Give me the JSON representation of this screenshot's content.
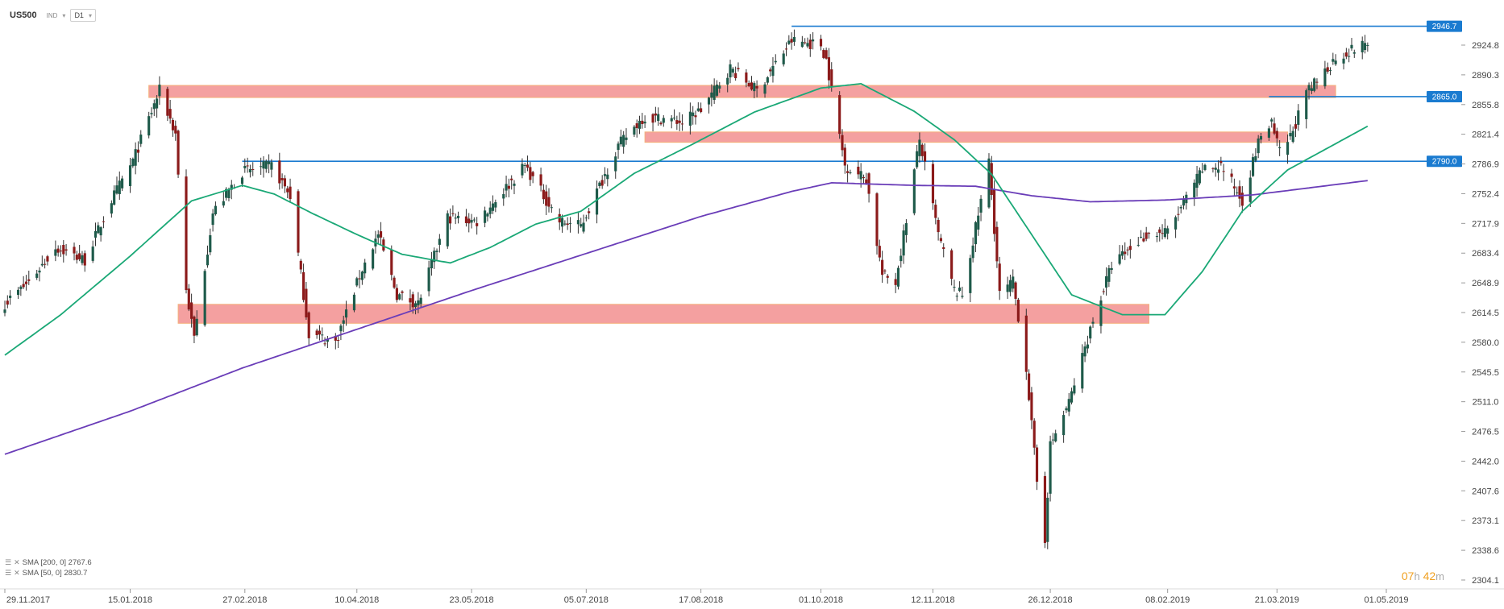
{
  "header": {
    "symbol": "US500",
    "market": "IND",
    "timeframe": "D1"
  },
  "legend": [
    {
      "label": "SMA [200, 0] 2767.6",
      "color": "#6a3db8"
    },
    {
      "label": "SMA [50, 0] 2830.7",
      "color": "#1aa876"
    }
  ],
  "timer": {
    "hours": "07",
    "h": "h",
    "minutes": "42",
    "m": "m"
  },
  "colors": {
    "bull": "#1e5a4a",
    "bear": "#8b1a1a",
    "sma200": "#6a3db8",
    "sma50": "#1aa876",
    "level": "#1a7bd0",
    "zone": "#f08080"
  },
  "chart_data": {
    "type": "candlestick",
    "x_ticks": [
      "29.11.2017",
      "15.01.2018",
      "27.02.2018",
      "10.04.2018",
      "23.05.2018",
      "05.07.2018",
      "17.08.2018",
      "01.10.2018",
      "12.11.2018",
      "26.12.2018",
      "08.02.2019",
      "21.03.2019",
      "01.05.2019"
    ],
    "y_ticks": [
      "2924.8",
      "2890.3",
      "2855.8",
      "2821.4",
      "2786.9",
      "2752.4",
      "2717.9",
      "2683.4",
      "2648.9",
      "2614.5",
      "2580.0",
      "2545.5",
      "2511.0",
      "2476.5",
      "2442.0",
      "2407.6",
      "2373.1",
      "2338.6",
      "2304.1"
    ],
    "ylim": [
      2304.1,
      2964.0
    ],
    "levels": [
      {
        "value": 2946.7,
        "label": "2946.7",
        "start": "2018-09-20"
      },
      {
        "value": 2865.0,
        "label": "2865.0",
        "start": "2019-03-18"
      },
      {
        "value": 2790.0,
        "label": "2790.0",
        "start": "2018-02-26"
      }
    ],
    "zones": [
      {
        "from": 2864,
        "to": 2878,
        "start": "2018-01-22",
        "end": "2019-04-12"
      },
      {
        "from": 2812,
        "to": 2824,
        "start": "2018-07-27",
        "end": "2019-03-25"
      },
      {
        "from": 2602,
        "to": 2624,
        "start": "2018-02-02",
        "end": "2019-02-01"
      }
    ],
    "price_anchors": [
      [
        "2017-11-29",
        2625
      ],
      [
        "2017-12-08",
        2650
      ],
      [
        "2017-12-18",
        2690
      ],
      [
        "2017-12-29",
        2675
      ],
      [
        "2018-01-08",
        2745
      ],
      [
        "2018-01-16",
        2790
      ],
      [
        "2018-01-26",
        2872
      ],
      [
        "2018-02-01",
        2822
      ],
      [
        "2018-02-05",
        2640
      ],
      [
        "2018-02-08",
        2585
      ],
      [
        "2018-02-15",
        2730
      ],
      [
        "2018-02-26",
        2778
      ],
      [
        "2018-03-09",
        2785
      ],
      [
        "2018-03-16",
        2750
      ],
      [
        "2018-03-23",
        2590
      ],
      [
        "2018-04-02",
        2580
      ],
      [
        "2018-04-12",
        2665
      ],
      [
        "2018-04-18",
        2705
      ],
      [
        "2018-04-25",
        2635
      ],
      [
        "2018-05-03",
        2625
      ],
      [
        "2018-05-14",
        2725
      ],
      [
        "2018-05-25",
        2720
      ],
      [
        "2018-06-12",
        2785
      ],
      [
        "2018-06-25",
        2720
      ],
      [
        "2018-07-03",
        2715
      ],
      [
        "2018-07-17",
        2808
      ],
      [
        "2018-07-26",
        2840
      ],
      [
        "2018-08-03",
        2840
      ],
      [
        "2018-08-10",
        2835
      ],
      [
        "2018-08-17",
        2850
      ],
      [
        "2018-08-28",
        2898
      ],
      [
        "2018-09-07",
        2872
      ],
      [
        "2018-09-20",
        2930
      ],
      [
        "2018-10-01",
        2925
      ],
      [
        "2018-10-03",
        2908
      ],
      [
        "2018-10-10",
        2785
      ],
      [
        "2018-10-18",
        2770
      ],
      [
        "2018-10-24",
        2658
      ],
      [
        "2018-10-29",
        2650
      ],
      [
        "2018-11-07",
        2815
      ],
      [
        "2018-11-14",
        2705
      ],
      [
        "2018-11-20",
        2640
      ],
      [
        "2018-11-23",
        2635
      ],
      [
        "2018-12-03",
        2790
      ],
      [
        "2018-12-07",
        2635
      ],
      [
        "2018-12-12",
        2650
      ],
      [
        "2018-12-17",
        2550
      ],
      [
        "2018-12-21",
        2418
      ],
      [
        "2018-12-24",
        2352
      ],
      [
        "2018-12-26",
        2460
      ],
      [
        "2019-01-02",
        2510
      ],
      [
        "2019-01-10",
        2595
      ],
      [
        "2019-01-18",
        2670
      ],
      [
        "2019-01-31",
        2705
      ],
      [
        "2019-02-08",
        2708
      ],
      [
        "2019-02-21",
        2780
      ],
      [
        "2019-02-28",
        2785
      ],
      [
        "2019-03-08",
        2745
      ],
      [
        "2019-03-15",
        2822
      ],
      [
        "2019-03-19",
        2832
      ],
      [
        "2019-03-22",
        2800
      ],
      [
        "2019-03-26",
        2818
      ],
      [
        "2019-04-01",
        2868
      ],
      [
        "2019-04-12",
        2910
      ],
      [
        "2019-04-24",
        2928
      ]
    ],
    "sma50_anchors": [
      [
        "2017-11-29",
        2565
      ],
      [
        "2017-12-20",
        2612
      ],
      [
        "2018-01-15",
        2680
      ],
      [
        "2018-02-07",
        2744
      ],
      [
        "2018-02-26",
        2762
      ],
      [
        "2018-03-10",
        2752
      ],
      [
        "2018-03-24",
        2730
      ],
      [
        "2018-04-10",
        2705
      ],
      [
        "2018-04-27",
        2682
      ],
      [
        "2018-05-15",
        2672
      ],
      [
        "2018-05-30",
        2690
      ],
      [
        "2018-06-16",
        2717
      ],
      [
        "2018-07-03",
        2732
      ],
      [
        "2018-07-23",
        2776
      ],
      [
        "2018-08-14",
        2810
      ],
      [
        "2018-09-06",
        2847
      ],
      [
        "2018-10-01",
        2875
      ],
      [
        "2018-10-16",
        2880
      ],
      [
        "2018-11-05",
        2848
      ],
      [
        "2018-11-20",
        2815
      ],
      [
        "2018-12-04",
        2775
      ],
      [
        "2018-12-19",
        2705
      ],
      [
        "2019-01-03",
        2635
      ],
      [
        "2019-01-22",
        2612
      ],
      [
        "2019-02-07",
        2612
      ],
      [
        "2019-02-21",
        2662
      ],
      [
        "2019-03-08",
        2732
      ],
      [
        "2019-03-25",
        2780
      ],
      [
        "2019-04-24",
        2830.7
      ]
    ],
    "sma200_anchors": [
      [
        "2017-11-29",
        2450
      ],
      [
        "2018-01-15",
        2500
      ],
      [
        "2018-02-26",
        2550
      ],
      [
        "2018-04-10",
        2595
      ],
      [
        "2018-05-23",
        2640
      ],
      [
        "2018-07-05",
        2683
      ],
      [
        "2018-08-17",
        2726
      ],
      [
        "2018-09-20",
        2755
      ],
      [
        "2018-10-05",
        2765
      ],
      [
        "2018-11-06",
        2762
      ],
      [
        "2018-11-28",
        2761
      ],
      [
        "2018-12-19",
        2750
      ],
      [
        "2019-01-10",
        2743
      ],
      [
        "2019-02-07",
        2745
      ],
      [
        "2019-03-12",
        2751
      ],
      [
        "2019-04-24",
        2767.6
      ]
    ]
  }
}
